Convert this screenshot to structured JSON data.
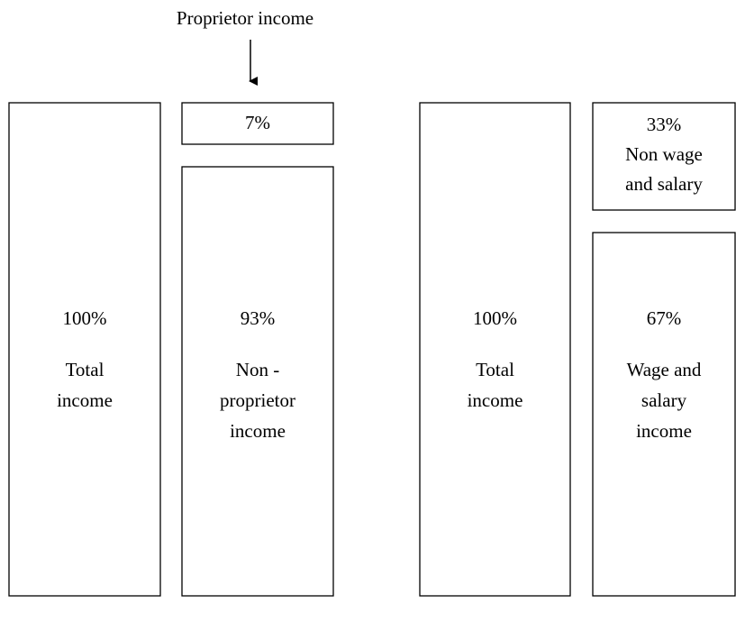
{
  "annotation": {
    "label": "Proprietor income"
  },
  "boxes": [
    {
      "value": "100%",
      "label_lines": [
        "Total",
        "income"
      ]
    },
    {
      "value": "7%"
    },
    {
      "value": "93%",
      "label_lines": [
        "Non -",
        "proprietor",
        "income"
      ]
    },
    {
      "value": "100%",
      "label_lines": [
        "Total",
        "income"
      ]
    },
    {
      "value": "33%",
      "label_lines": [
        "Non wage",
        "and salary"
      ]
    },
    {
      "value": "67%",
      "label_lines": [
        "Wage and",
        "salary",
        "income"
      ]
    }
  ]
}
